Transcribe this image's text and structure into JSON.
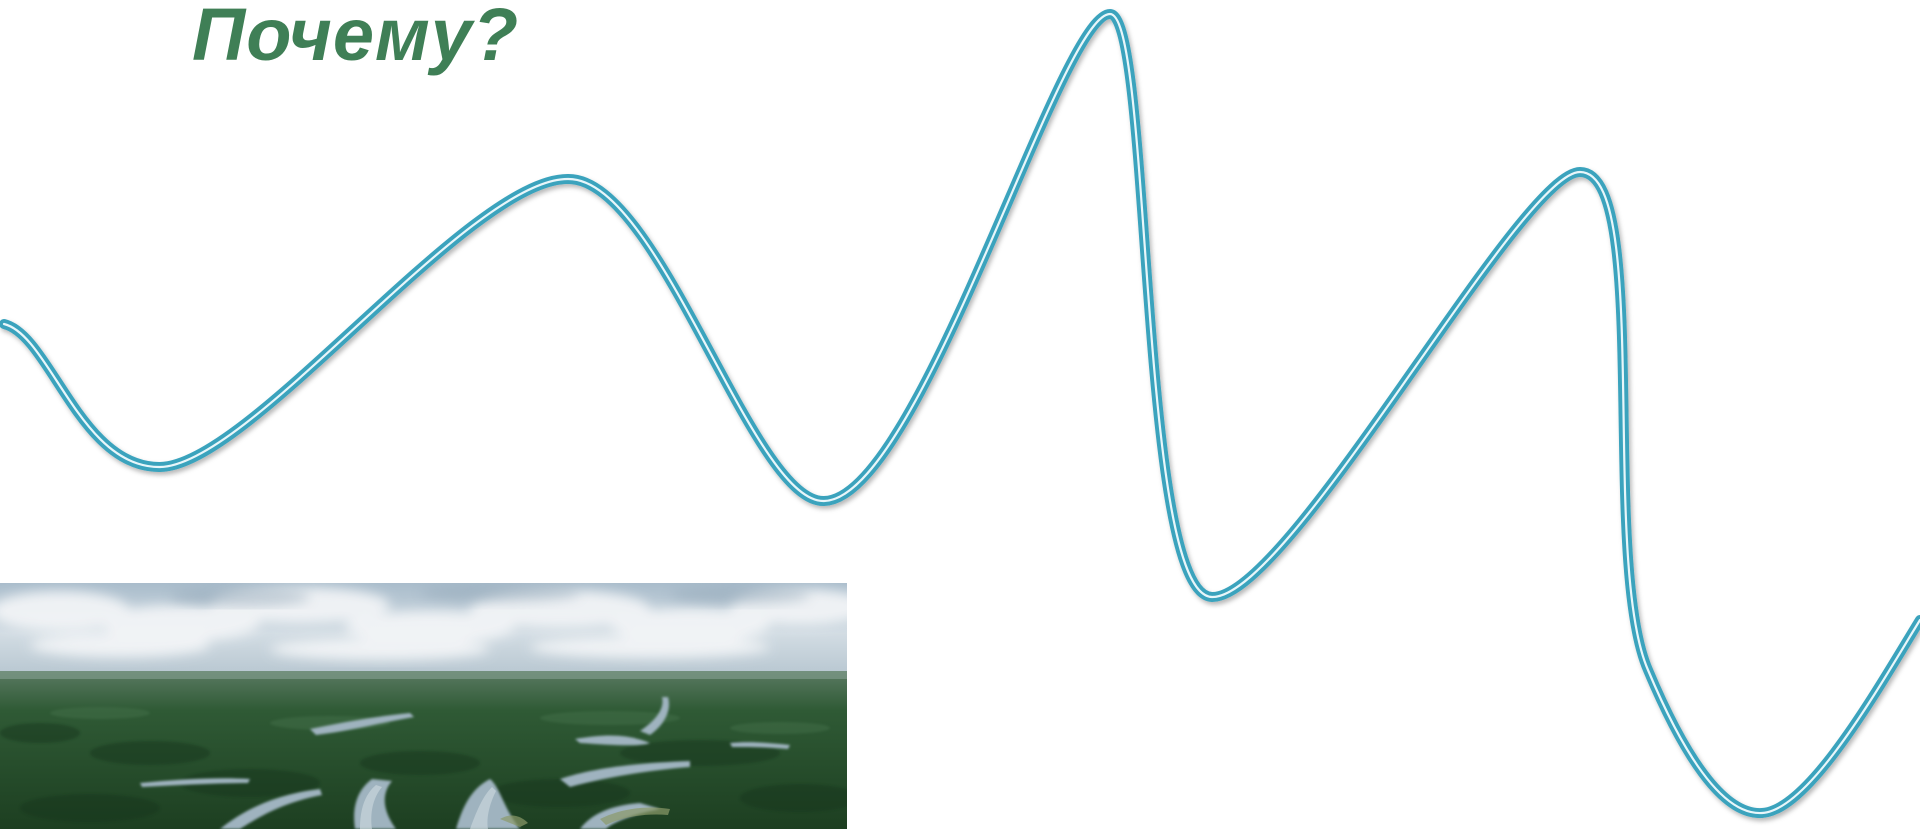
{
  "slide": {
    "title": "Почему?",
    "title_color": "#3f7f56",
    "wave_color": "#3aa3bd",
    "photo": {
      "icon": "aerial-river-landscape-photo"
    }
  }
}
